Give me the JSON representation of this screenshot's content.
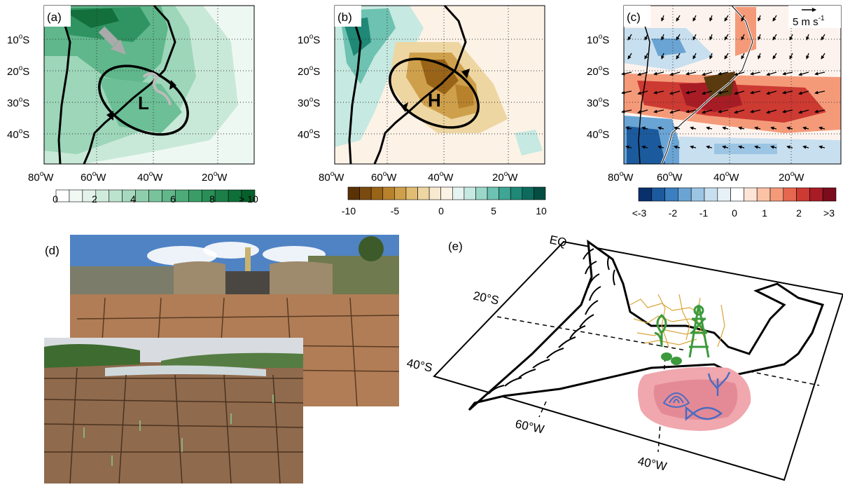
{
  "panels": {
    "a": {
      "label": "(a)",
      "center_label": "L"
    },
    "b": {
      "label": "(b)",
      "center_label": "H"
    },
    "c": {
      "label": "(c)",
      "vector_ref": "5 m s",
      "vector_ref_exp": "-1"
    },
    "d": {
      "label": "(d)"
    },
    "e": {
      "label": "(e)"
    }
  },
  "lat_ticks": [
    {
      "deg": "10",
      "hemi": "S"
    },
    {
      "deg": "20",
      "hemi": "S"
    },
    {
      "deg": "30",
      "hemi": "S"
    },
    {
      "deg": "40",
      "hemi": "S"
    }
  ],
  "lon_ticks": [
    {
      "deg": "80",
      "hemi": "W"
    },
    {
      "deg": "60",
      "hemi": "W"
    },
    {
      "deg": "40",
      "hemi": "W"
    },
    {
      "deg": "20",
      "hemi": "W"
    }
  ],
  "colorbars": {
    "a": {
      "labels": [
        "0",
        "2",
        "4",
        "6",
        "8",
        "> 10"
      ],
      "colors": [
        "#ffffff",
        "#f2f9f5",
        "#e3f3ea",
        "#d0ebdc",
        "#bce3cd",
        "#a6d9bd",
        "#8fceac",
        "#78c39b",
        "#62b78a",
        "#4dab79",
        "#3a9d68",
        "#2a8e57",
        "#1c7f48",
        "#0f6f39",
        "#05602b"
      ]
    },
    "b": {
      "labels": [
        "-10",
        "-5",
        "0",
        "5",
        "10"
      ],
      "colors": [
        "#5a3206",
        "#7b4a0f",
        "#9a6418",
        "#b8822d",
        "#cfa04b",
        "#e1bd74",
        "#eed6a2",
        "#f8ead0",
        "#fbf3e6",
        "#e6f4f1",
        "#c6e9e1",
        "#9bd7c9",
        "#6dc2b1",
        "#3fa595",
        "#1f8877",
        "#0c6b5c",
        "#034d41"
      ]
    },
    "c": {
      "labels": [
        "<-3",
        "-2",
        "-1",
        "0",
        "1",
        "2",
        ">3"
      ],
      "colors": [
        "#08306b",
        "#1c5a9e",
        "#3a7fbf",
        "#6aa4d4",
        "#9cc5e4",
        "#c8dfef",
        "#e7f0f7",
        "#ffffff",
        "#fde4d6",
        "#fbc2a6",
        "#f59a79",
        "#e6674f",
        "#cc3a32",
        "#a81c25",
        "#7a0c1c"
      ]
    }
  },
  "schematic": {
    "eq": "EQ",
    "lat20": "20°S",
    "lat40": "40°S",
    "lon60": "60°W",
    "lon40": "40°W"
  }
}
